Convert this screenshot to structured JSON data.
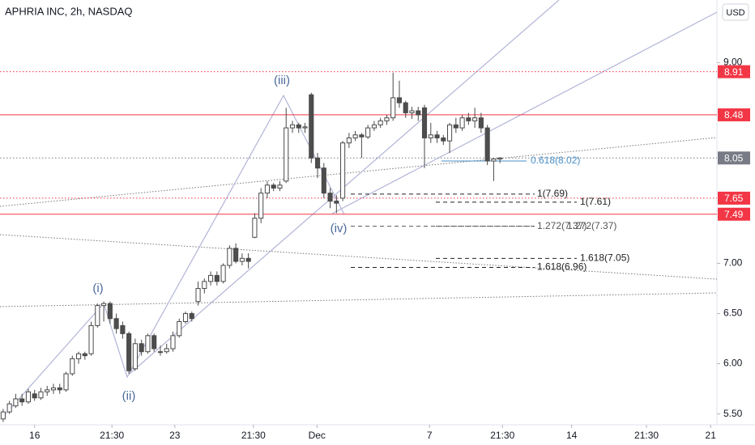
{
  "chart_data": {
    "type": "candlestick",
    "title": "APHRIA INC, 2h, NASDAQ",
    "currency": "USD",
    "open": [
      5.45,
      5.52,
      5.58,
      5.65,
      5.62,
      5.7,
      5.66,
      5.72,
      5.74,
      5.76,
      5.74,
      5.9,
      6.05,
      6.1,
      6.1,
      6.38,
      6.58,
      6.6,
      6.45,
      6.38,
      6.3,
      5.95,
      6.2,
      6.12,
      6.28,
      6.12,
      6.12,
      6.15,
      6.28,
      6.42,
      6.5,
      6.62,
      6.75,
      6.82,
      6.88,
      6.82,
      6.98,
      7.15,
      7.02,
      7.05,
      7.26,
      7.45,
      7.7,
      7.78,
      7.75,
      7.82,
      8.35,
      8.38,
      8.35,
      8.68,
      8.05,
      7.95,
      7.7,
      7.62,
      7.65,
      8.2,
      8.25,
      8.28,
      8.26,
      8.35,
      8.38,
      8.42,
      8.45,
      8.65,
      8.6,
      8.5,
      8.52,
      8.55,
      8.25,
      8.28,
      8.25,
      8.22,
      8.38,
      8.35,
      8.45,
      8.42,
      8.45,
      8.35,
      8.02,
      8.04
    ],
    "high": [
      5.55,
      5.63,
      5.7,
      5.7,
      5.75,
      5.74,
      5.76,
      5.78,
      5.8,
      5.8,
      5.92,
      6.08,
      6.12,
      6.12,
      6.42,
      6.6,
      6.62,
      6.62,
      6.5,
      6.42,
      6.32,
      6.25,
      6.24,
      6.3,
      6.3,
      6.18,
      6.2,
      6.32,
      6.45,
      6.52,
      6.52,
      6.82,
      6.85,
      6.92,
      6.92,
      7.0,
      7.18,
      7.2,
      7.1,
      7.1,
      7.5,
      7.75,
      7.82,
      7.8,
      7.82,
      8.55,
      8.42,
      8.4,
      8.4,
      8.7,
      8.1,
      8.0,
      7.75,
      7.68,
      8.22,
      8.3,
      8.32,
      8.3,
      8.38,
      8.42,
      8.45,
      8.48,
      8.9,
      8.82,
      8.62,
      8.56,
      8.56,
      8.58,
      8.4,
      8.32,
      8.28,
      8.4,
      8.45,
      8.48,
      8.5,
      8.55,
      8.5,
      8.38,
      8.05,
      8.06
    ],
    "low": [
      5.42,
      5.5,
      5.56,
      5.58,
      5.6,
      5.63,
      5.64,
      5.68,
      5.7,
      5.7,
      5.72,
      5.88,
      6.0,
      6.04,
      6.08,
      6.36,
      6.42,
      6.4,
      6.3,
      6.25,
      5.9,
      5.93,
      6.08,
      6.1,
      6.12,
      6.08,
      6.1,
      6.12,
      6.26,
      6.4,
      6.42,
      6.58,
      6.7,
      6.78,
      6.78,
      6.8,
      6.95,
      7.0,
      6.98,
      6.95,
      7.25,
      7.4,
      7.65,
      7.72,
      7.72,
      7.8,
      8.3,
      8.3,
      8.3,
      8.0,
      7.85,
      7.65,
      7.55,
      7.5,
      7.62,
      8.15,
      8.22,
      8.05,
      8.24,
      8.32,
      8.35,
      8.38,
      8.42,
      8.55,
      8.45,
      8.44,
      8.42,
      7.95,
      8.2,
      8.2,
      8.18,
      8.1,
      8.3,
      8.32,
      8.38,
      8.35,
      8.3,
      7.98,
      7.82,
      8.0
    ],
    "close": [
      5.52,
      5.6,
      5.65,
      5.62,
      5.72,
      5.66,
      5.72,
      5.74,
      5.76,
      5.74,
      5.9,
      6.05,
      6.1,
      6.08,
      6.38,
      6.58,
      6.6,
      6.45,
      6.35,
      6.3,
      5.93,
      6.2,
      6.12,
      6.28,
      6.15,
      6.12,
      6.15,
      6.28,
      6.42,
      6.5,
      6.45,
      6.75,
      6.82,
      6.88,
      6.82,
      6.98,
      7.15,
      7.02,
      7.05,
      7.02,
      7.45,
      7.7,
      7.78,
      7.75,
      7.78,
      8.35,
      8.38,
      8.35,
      8.36,
      8.05,
      7.95,
      7.7,
      7.62,
      7.6,
      8.2,
      8.25,
      8.28,
      8.26,
      8.35,
      8.38,
      8.42,
      8.45,
      8.65,
      8.6,
      8.5,
      8.52,
      8.48,
      8.25,
      8.28,
      8.25,
      8.22,
      8.38,
      8.35,
      8.45,
      8.42,
      8.45,
      8.35,
      8.02,
      8.04,
      8.05
    ],
    "xlim": [
      -0.5,
      113.5
    ],
    "xticks": [
      {
        "value": 5,
        "label": "16"
      },
      {
        "value": 17.3,
        "label": "21:30"
      },
      {
        "value": 27.3,
        "label": "23"
      },
      {
        "value": 39.8,
        "label": "21:30"
      },
      {
        "value": 49.9,
        "label": "Dec"
      },
      {
        "value": 67.8,
        "label": "7"
      },
      {
        "value": 79.4,
        "label": "21:30"
      },
      {
        "value": 90.4,
        "label": "14"
      },
      {
        "value": 102.3,
        "label": "21:30"
      },
      {
        "value": 112.5,
        "label": "21"
      }
    ],
    "ylim": [
      5.4,
      9.6
    ],
    "yticks": [
      {
        "value": 9,
        "label": "9.00"
      },
      {
        "value": 7,
        "label": "7.00"
      },
      {
        "value": 6.5,
        "label": "6.50"
      },
      {
        "value": 6,
        "label": "6.00"
      },
      {
        "value": 5.5,
        "label": "5.50"
      }
    ],
    "grid": false,
    "up_color": "#ffffff",
    "down_color": "#4d4d4d",
    "levels": [
      {
        "value": 8.91,
        "label": "8.91",
        "color": "#f23645",
        "style": "dotted"
      },
      {
        "value": 8.48,
        "label": "8.48",
        "color": "#f23645",
        "style": "solid"
      },
      {
        "value": 8.05,
        "label": "8.05",
        "color": "#787b86",
        "style": "dotted"
      },
      {
        "value": 7.65,
        "label": "7.65",
        "color": "#f23645",
        "style": "dotted"
      },
      {
        "value": 7.49,
        "label": "7.49",
        "color": "#f23645",
        "style": "solid"
      }
    ],
    "fib_levels": [
      {
        "value": 8.02,
        "label": "0.618(8.02)"
      },
      {
        "value": 7.69,
        "label": "1(7.69)"
      },
      {
        "value": 7.61,
        "label": "1(7.61)"
      },
      {
        "value": 7.37,
        "label": "1.272(7.37)"
      },
      {
        "value": 7.37,
        "label": "1.272(7.37)"
      },
      {
        "value": 7.05,
        "label": "1.618(7.05)"
      },
      {
        "value": 6.96,
        "label": "1.618(6.96)"
      }
    ],
    "wave_labels": [
      "(i)",
      "(ii)",
      "(iii)",
      "(iv)"
    ]
  }
}
